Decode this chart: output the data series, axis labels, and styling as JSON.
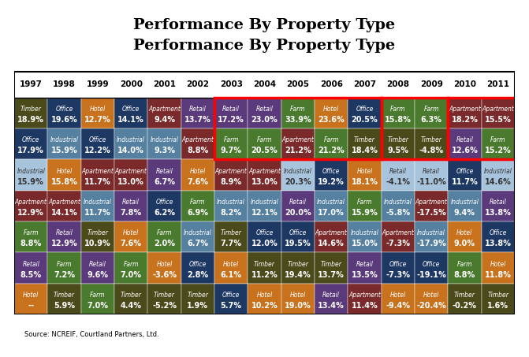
{
  "title": "Performance By Property Type",
  "source": "Source: NCREIF, Courtland Partners, Ltd.",
  "years": [
    "1997",
    "1998",
    "1999",
    "2000",
    "2001",
    "2002",
    "2003",
    "2004",
    "2005",
    "2006",
    "2007",
    "2008",
    "2009",
    "2010",
    "2011"
  ],
  "red_box_cols": [
    [
      6,
      7,
      8,
      9,
      10
    ],
    [
      11,
      12
    ],
    [
      13,
      14
    ]
  ],
  "cells": [
    [
      {
        "type": "Timber",
        "val": "18.9%",
        "color": "#4a4a1a"
      },
      {
        "type": "Office",
        "val": "19.6%",
        "color": "#1e3a5f"
      },
      {
        "type": "Hotel",
        "val": "12.7%",
        "color": "#d2691e"
      },
      {
        "type": "Office",
        "val": "14.1%",
        "color": "#1e3a5f"
      },
      {
        "type": "Apartment",
        "val": "9.4%",
        "color": "#7a3b2e"
      },
      {
        "type": "Retail",
        "val": "13.7%",
        "color": "#6a4a8a"
      },
      {
        "type": "Retail",
        "val": "17.2%",
        "color": "#6a4a8a"
      },
      {
        "type": "Retail",
        "val": "23.0%",
        "color": "#6a4a8a"
      },
      {
        "type": "Farm",
        "val": "33.9%",
        "color": "#4a7a2e"
      },
      {
        "type": "Hotel",
        "val": "23.6%",
        "color": "#d2691e"
      },
      {
        "type": "Office",
        "val": "20.5%",
        "color": "#1e3a5f"
      },
      {
        "type": "Farm",
        "val": "15.8%",
        "color": "#4a7a2e"
      },
      {
        "type": "Farm",
        "val": "6.3%",
        "color": "#4a7a2e"
      },
      {
        "type": "Apartment",
        "val": "18.2%",
        "color": "#7a3b2e"
      },
      {
        "type": "Apartment",
        "val": "15.5%",
        "color": "#7a3b2e"
      }
    ],
    [
      {
        "type": "Office",
        "val": "17.9%",
        "color": "#1e3a5f"
      },
      {
        "type": "Industrial",
        "val": "15.9%",
        "color": "#5a8ab0"
      },
      {
        "type": "Office",
        "val": "12.2%",
        "color": "#1e3a5f"
      },
      {
        "type": "Industrial",
        "val": "14.0%",
        "color": "#5a8ab0"
      },
      {
        "type": "Industrial",
        "val": "9.3%",
        "color": "#5a8ab0"
      },
      {
        "type": "Apartment",
        "val": "8.8%",
        "color": "#7a3b2e"
      },
      {
        "type": "Farm",
        "val": "9.7%",
        "color": "#4a7a2e"
      },
      {
        "type": "Farm",
        "val": "20.5%",
        "color": "#4a7a2e"
      },
      {
        "type": "Apartment",
        "val": "21.2%",
        "color": "#7a3b2e"
      },
      {
        "type": "Farm",
        "val": "21.2%",
        "color": "#4a7a2e"
      },
      {
        "type": "Timber",
        "val": "18.4%",
        "color": "#4a4a1a"
      },
      {
        "type": "Timber",
        "val": "9.5%",
        "color": "#4a4a1a"
      },
      {
        "type": "Timber",
        "val": "-4.8%",
        "color": "#4a4a1a"
      },
      {
        "type": "Retail",
        "val": "12.6%",
        "color": "#6a4a8a"
      },
      {
        "type": "Farm",
        "val": "15.2%",
        "color": "#4a7a2e"
      }
    ],
    [
      {
        "type": "Industrial",
        "val": "15.9%",
        "color": "#a8c8e8"
      },
      {
        "type": "Hotel",
        "val": "15.8%",
        "color": "#d2691e"
      },
      {
        "type": "Apartment",
        "val": "11.7%",
        "color": "#7a3b2e"
      },
      {
        "type": "Apartment",
        "val": "13.0%",
        "color": "#7a3b2e"
      },
      {
        "type": "Retail",
        "val": "6.7%",
        "color": "#6a4a8a"
      },
      {
        "type": "Hotel",
        "val": "7.6%",
        "color": "#d2691e"
      },
      {
        "type": "Apartment",
        "val": "8.9%",
        "color": "#7a3b2e"
      },
      {
        "type": "Apartment",
        "val": "13.0%",
        "color": "#7a3b2e"
      },
      {
        "type": "Industrial",
        "val": "20.3%",
        "color": "#a8c8e8"
      },
      {
        "type": "Office",
        "val": "19.2%",
        "color": "#1e3a5f"
      },
      {
        "type": "Hotel",
        "val": "18.1%",
        "color": "#d2691e"
      },
      {
        "type": "Retail",
        "val": "-4.1%",
        "color": "#a8c8e8"
      },
      {
        "type": "Retail",
        "val": "-11.0%",
        "color": "#a8c8e8"
      },
      {
        "type": "Office",
        "val": "11.7%",
        "color": "#1e3a5f"
      },
      {
        "type": "Industrial",
        "val": "14.6%",
        "color": "#a8c8e8"
      }
    ],
    [
      {
        "type": "Apartment",
        "val": "12.9%",
        "color": "#7a3b2e"
      },
      {
        "type": "Apartment",
        "val": "14.1%",
        "color": "#7a3b2e"
      },
      {
        "type": "Industrial",
        "val": "11.7%",
        "color": "#5a8ab0"
      },
      {
        "type": "Retail",
        "val": "7.8%",
        "color": "#6a4a8a"
      },
      {
        "type": "Office",
        "val": "6.2%",
        "color": "#1e3a5f"
      },
      {
        "type": "Farm",
        "val": "6.9%",
        "color": "#4a7a2e"
      },
      {
        "type": "Industrial",
        "val": "8.2%",
        "color": "#5a8ab0"
      },
      {
        "type": "Industrial",
        "val": "12.1%",
        "color": "#5a8ab0"
      },
      {
        "type": "Retail",
        "val": "20.0%",
        "color": "#6a4a8a"
      },
      {
        "type": "Industrial",
        "val": "17.0%",
        "color": "#5a8ab0"
      },
      {
        "type": "Farm",
        "val": "15.9%",
        "color": "#4a7a2e"
      },
      {
        "type": "Industrial",
        "val": "-5.8%",
        "color": "#5a8ab0"
      },
      {
        "type": "Apartment",
        "val": "-17.5%",
        "color": "#7a3b2e"
      },
      {
        "type": "Industrial",
        "val": "9.4%",
        "color": "#5a8ab0"
      },
      {
        "type": "Retail",
        "val": "13.8%",
        "color": "#6a4a8a"
      }
    ],
    [
      {
        "type": "Farm",
        "val": "8.8%",
        "color": "#4a7a2e"
      },
      {
        "type": "Retail",
        "val": "12.9%",
        "color": "#6a4a8a"
      },
      {
        "type": "Timber",
        "val": "10.9%",
        "color": "#4a4a1a"
      },
      {
        "type": "Hotel",
        "val": "7.6%",
        "color": "#d2691e"
      },
      {
        "type": "Farm",
        "val": "2.0%",
        "color": "#4a7a2e"
      },
      {
        "type": "Industrial",
        "val": "6.7%",
        "color": "#5a8ab0"
      },
      {
        "type": "Timber",
        "val": "7.7%",
        "color": "#4a4a1a"
      },
      {
        "type": "Office",
        "val": "12.0%",
        "color": "#1e3a5f"
      },
      {
        "type": "Office",
        "val": "19.5%",
        "color": "#1e3a5f"
      },
      {
        "type": "Apartment",
        "val": "14.6%",
        "color": "#7a3b2e"
      },
      {
        "type": "Industrial",
        "val": "15.0%",
        "color": "#5a8ab0"
      },
      {
        "type": "Apartment",
        "val": "-7.3%",
        "color": "#7a3b2e"
      },
      {
        "type": "Industrial",
        "val": "-17.9%",
        "color": "#5a8ab0"
      },
      {
        "type": "Hotel",
        "val": "9.0%",
        "color": "#d2691e"
      },
      {
        "type": "Office",
        "val": "13.8%",
        "color": "#1e3a5f"
      }
    ],
    [
      {
        "type": "Retail",
        "val": "8.5%",
        "color": "#6a4a8a"
      },
      {
        "type": "Farm",
        "val": "7.2%",
        "color": "#4a7a2e"
      },
      {
        "type": "Retail",
        "val": "9.6%",
        "color": "#6a4a8a"
      },
      {
        "type": "Farm",
        "val": "7.0%",
        "color": "#4a7a2e"
      },
      {
        "type": "Hotel",
        "val": "-3.6%",
        "color": "#d2691e"
      },
      {
        "type": "Office",
        "val": "2.8%",
        "color": "#1e3a5f"
      },
      {
        "type": "Hotel",
        "val": "6.1%",
        "color": "#d2691e"
      },
      {
        "type": "Timber",
        "val": "11.2%",
        "color": "#4a4a1a"
      },
      {
        "type": "Timber",
        "val": "19.4%",
        "color": "#4a4a1a"
      },
      {
        "type": "Timber",
        "val": "13.7%",
        "color": "#4a4a1a"
      },
      {
        "type": "Retail",
        "val": "13.5%",
        "color": "#6a4a8a"
      },
      {
        "type": "Office",
        "val": "-7.3%",
        "color": "#1e3a5f"
      },
      {
        "type": "Office",
        "val": "-19.1%",
        "color": "#1e3a5f"
      },
      {
        "type": "Farm",
        "val": "8.8%",
        "color": "#4a7a2e"
      },
      {
        "type": "Hotel",
        "val": "11.8%",
        "color": "#d2691e"
      }
    ],
    [
      {
        "type": "Hotel",
        "val": "--",
        "color": "#d2691e"
      },
      {
        "type": "Timber",
        "val": "5.9%",
        "color": "#4a4a1a"
      },
      {
        "type": "Farm",
        "val": "7.0%",
        "color": "#4a7a2e"
      },
      {
        "type": "Timber",
        "val": "4.4%",
        "color": "#4a4a1a"
      },
      {
        "type": "Timber",
        "val": "-5.2%",
        "color": "#4a4a1a"
      },
      {
        "type": "Timber",
        "val": "1.9%",
        "color": "#4a4a1a"
      },
      {
        "type": "Office",
        "val": "5.7%",
        "color": "#1e3a5f"
      },
      {
        "type": "Hotel",
        "val": "10.2%",
        "color": "#d2691e"
      },
      {
        "type": "Hotel",
        "val": "19.0%",
        "color": "#d2691e"
      },
      {
        "type": "Retail",
        "val": "13.4%",
        "color": "#6a4a8a"
      },
      {
        "type": "Apartment",
        "val": "11.4%",
        "color": "#7a3b2e"
      },
      {
        "type": "Hotel",
        "val": "-9.4%",
        "color": "#d2691e"
      },
      {
        "type": "Hotel",
        "val": "-20.4%",
        "color": "#d2691e"
      },
      {
        "type": "Timber",
        "val": "-0.2%",
        "color": "#4a4a1a"
      },
      {
        "type": "Timber",
        "val": "1.6%",
        "color": "#4a4a1a"
      }
    ]
  ]
}
